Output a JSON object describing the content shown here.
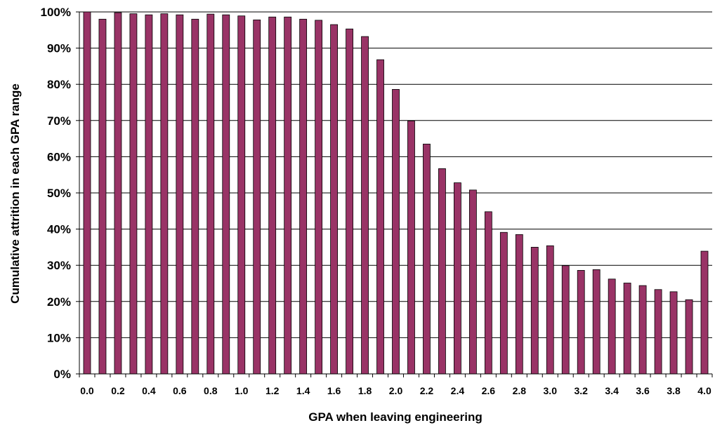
{
  "chart_data": {
    "type": "bar",
    "title": "",
    "xlabel": "GPA when leaving engineering",
    "ylabel": "Cumulative attrition in each GPA range",
    "ylim": [
      0,
      100
    ],
    "y_tick_values": [
      0,
      10,
      20,
      30,
      40,
      50,
      60,
      70,
      80,
      90,
      100
    ],
    "y_tick_labels": [
      "0%",
      "10%",
      "20%",
      "30%",
      "40%",
      "50%",
      "60%",
      "70%",
      "80%",
      "90%",
      "100%"
    ],
    "x_tick_labels": [
      "0.0",
      "0.2",
      "0.4",
      "0.6",
      "0.8",
      "1.0",
      "1.2",
      "1.4",
      "1.6",
      "1.8",
      "2.0",
      "2.2",
      "2.4",
      "2.6",
      "2.8",
      "3.0",
      "3.2",
      "3.4",
      "3.6",
      "3.8",
      "4.0"
    ],
    "grid": true,
    "legend": "none",
    "bar_color": "#993366",
    "categories": [
      "0.0",
      "0.1",
      "0.2",
      "0.3",
      "0.4",
      "0.5",
      "0.6",
      "0.7",
      "0.8",
      "0.9",
      "1.0",
      "1.1",
      "1.2",
      "1.3",
      "1.4",
      "1.5",
      "1.6",
      "1.7",
      "1.8",
      "1.9",
      "2.0",
      "2.1",
      "2.2",
      "2.3",
      "2.4",
      "2.5",
      "2.6",
      "2.7",
      "2.8",
      "2.9",
      "3.0",
      "3.1",
      "3.2",
      "3.3",
      "3.4",
      "3.5",
      "3.6",
      "3.7",
      "3.8",
      "3.9",
      "4.0"
    ],
    "values": [
      100,
      98,
      99.8,
      99.5,
      99.2,
      99.5,
      99.2,
      98,
      99.4,
      99.2,
      98.9,
      97.8,
      98.6,
      98.6,
      98,
      97.7,
      96.5,
      95.3,
      93.2,
      86.8,
      78.6,
      69.9,
      63.5,
      56.7,
      52.8,
      50.8,
      44.8,
      39.1,
      38.5,
      35,
      35.4,
      29.9,
      28.6,
      28.8,
      26.2,
      25.1,
      24.4,
      23.3,
      22.7,
      20.5,
      33.9
    ]
  }
}
